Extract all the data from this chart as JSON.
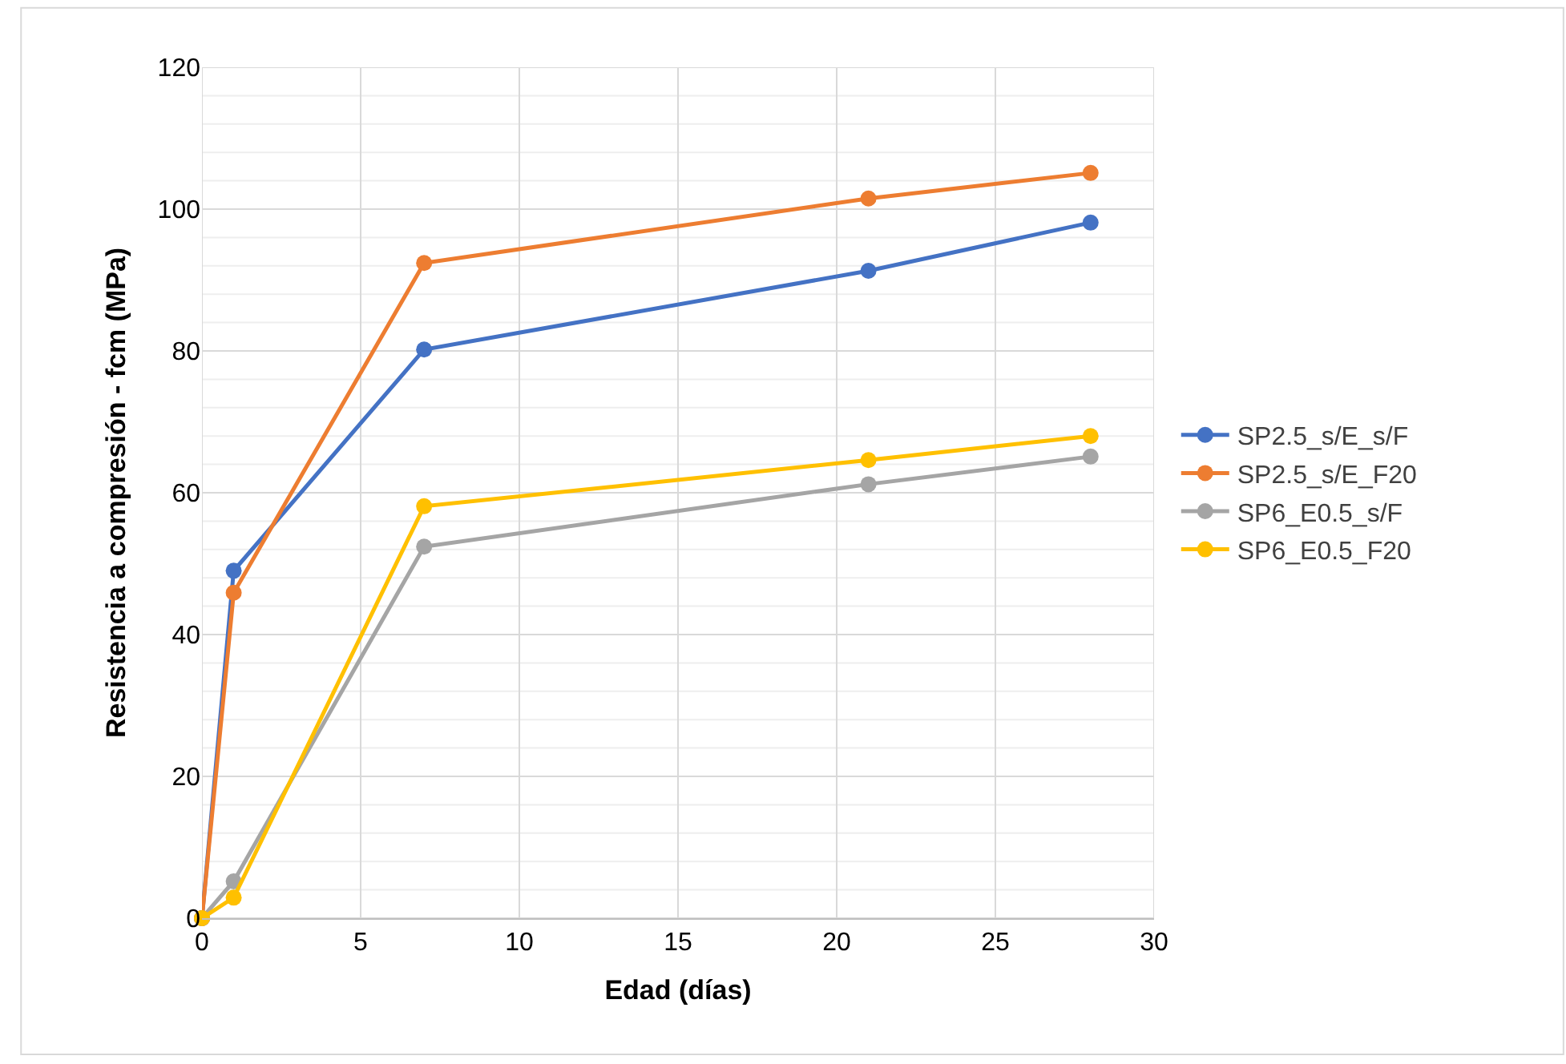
{
  "chart_data": {
    "type": "line",
    "xlabel": "Edad (días)",
    "ylabel": "Resistencia a compresión - fcm (MPa)",
    "x": [
      0,
      1,
      7,
      21,
      28
    ],
    "series": [
      {
        "name": "SP2.5_s/E_s/F",
        "color": "#4472c4",
        "values": [
          0,
          49,
          80.2,
          91.3,
          98.1
        ]
      },
      {
        "name": "SP2.5_s/E_F20",
        "color": "#ed7d31",
        "values": [
          0,
          45.9,
          92.4,
          101.5,
          105.1
        ]
      },
      {
        "name": "SP6_E0.5_s/F",
        "color": "#a5a5a5",
        "values": [
          0,
          5.2,
          52.4,
          61.2,
          65.1
        ]
      },
      {
        "name": "SP6_E0.5_F20",
        "color": "#ffc000",
        "values": [
          0,
          2.9,
          58.1,
          64.6,
          68
        ]
      }
    ],
    "xlim": [
      0,
      30
    ],
    "xticks": [
      0,
      5,
      10,
      15,
      20,
      25,
      30
    ],
    "ylim": [
      0,
      120
    ],
    "yticks": [
      0,
      {
        "value": 4,
        "label": null
      },
      {
        "value": 8,
        "label": null
      },
      {
        "value": 12,
        "label": null
      },
      {
        "value": 16,
        "label": null
      },
      20,
      {
        "value": 24,
        "label": null
      },
      {
        "value": 28,
        "label": null
      },
      {
        "value": 32,
        "label": null
      },
      {
        "value": 36,
        "label": null
      },
      40,
      {
        "value": 44,
        "label": null
      },
      {
        "value": 48,
        "label": null
      },
      {
        "value": 52,
        "label": null
      },
      {
        "value": 56,
        "label": null
      },
      60,
      {
        "value": 64,
        "label": null
      },
      {
        "value": 68,
        "label": null
      },
      {
        "value": 72,
        "label": null
      },
      {
        "value": 76,
        "label": null
      },
      80,
      {
        "value": 84,
        "label": null
      },
      {
        "value": 88,
        "label": null
      },
      {
        "value": 92,
        "label": null
      },
      {
        "value": 96,
        "label": null
      },
      100,
      {
        "value": 104,
        "label": null
      },
      {
        "value": 108,
        "label": null
      },
      {
        "value": 112,
        "label": null
      },
      {
        "value": 116,
        "label": null
      },
      120
    ],
    "grid": true,
    "legend": "right",
    "marker": "circle",
    "line_style": "solid"
  }
}
